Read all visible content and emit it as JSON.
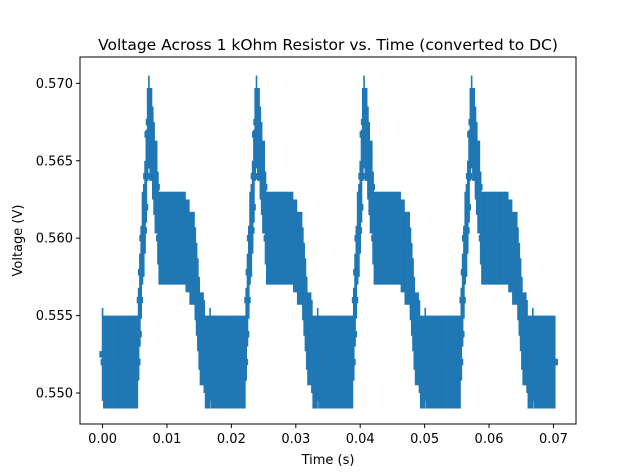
{
  "chart_data": {
    "type": "scatter",
    "title": "Voltage Across 1 kOhm Resistor vs. Time (converted to DC)",
    "xlabel": "Time (s)",
    "ylabel": "Voltage (V)",
    "xlim": [
      -0.0035,
      0.0735
    ],
    "ylim": [
      0.548,
      0.5717
    ],
    "xticks": [
      0.0,
      0.01,
      0.02,
      0.03,
      0.04,
      0.05,
      0.06,
      0.07
    ],
    "xtick_labels": [
      "0.00",
      "0.01",
      "0.02",
      "0.03",
      "0.04",
      "0.05",
      "0.06",
      "0.07"
    ],
    "yticks": [
      0.55,
      0.555,
      0.56,
      0.565,
      0.57
    ],
    "ytick_labels": [
      "0.550",
      "0.555",
      "0.560",
      "0.565",
      "0.570"
    ],
    "grid": false,
    "marker": "square",
    "color": "#1f77b4",
    "sample_period": 0.0002,
    "period": 0.0167,
    "error_bar_halfwidth": 0.003,
    "cycle_values": [
      0.5525,
      0.552,
      0.552,
      0.552,
      0.552,
      0.552,
      0.552,
      0.552,
      0.552,
      0.552,
      0.552,
      0.552,
      0.552,
      0.552,
      0.552,
      0.552,
      0.552,
      0.552,
      0.552,
      0.552,
      0.552,
      0.552,
      0.552,
      0.552,
      0.552,
      0.552,
      0.552,
      0.552,
      0.5538,
      0.556,
      0.5578,
      0.56,
      0.5605,
      0.562,
      0.564,
      0.5667,
      0.5675,
      0.5667,
      0.5667,
      0.5655,
      0.5645,
      0.5633,
      0.5633,
      0.5613,
      0.56,
      0.56,
      0.56,
      0.56,
      0.56,
      0.56,
      0.56,
      0.56,
      0.56,
      0.56,
      0.56,
      0.56,
      0.56,
      0.56,
      0.56,
      0.56,
      0.56,
      0.56,
      0.56,
      0.56,
      0.56,
      0.5595,
      0.5595,
      0.5595,
      0.5587,
      0.5587,
      0.5587,
      0.5587,
      0.5577,
      0.5567,
      0.5557,
      0.5545,
      0.5535,
      0.5535,
      0.5535,
      0.553,
      0.552,
      0.552,
      0.552,
      0.552
    ],
    "points_note_cycles": 5
  }
}
